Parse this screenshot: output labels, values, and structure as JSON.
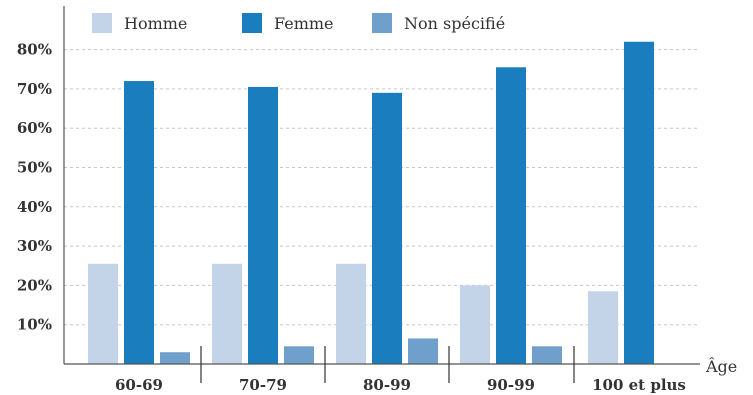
{
  "chart_data": {
    "type": "bar",
    "categories": [
      "60-69",
      "70-79",
      "80-99",
      "90-99",
      "100 et plus"
    ],
    "series": [
      {
        "name": "Homme",
        "color": "#c3d3e8",
        "values": [
          25.5,
          25.5,
          25.5,
          20,
          18.5
        ]
      },
      {
        "name": "Femme",
        "color": "#1a7dbd",
        "values": [
          72,
          70.5,
          69,
          75.5,
          82
        ]
      },
      {
        "name": "Non spécifié",
        "color": "#6fa0cc",
        "values": [
          3,
          4.5,
          6.5,
          4.5,
          null
        ]
      }
    ],
    "yticks": [
      "10%",
      "20%",
      "30%",
      "40%",
      "50%",
      "60%",
      "70%",
      "80%"
    ],
    "ytick_values": [
      10,
      20,
      30,
      40,
      50,
      60,
      70,
      80
    ],
    "ylim": [
      0,
      85
    ],
    "xlabel": "Âge",
    "ylabel": "",
    "title": "",
    "legend_position": "top",
    "grid": true
  }
}
